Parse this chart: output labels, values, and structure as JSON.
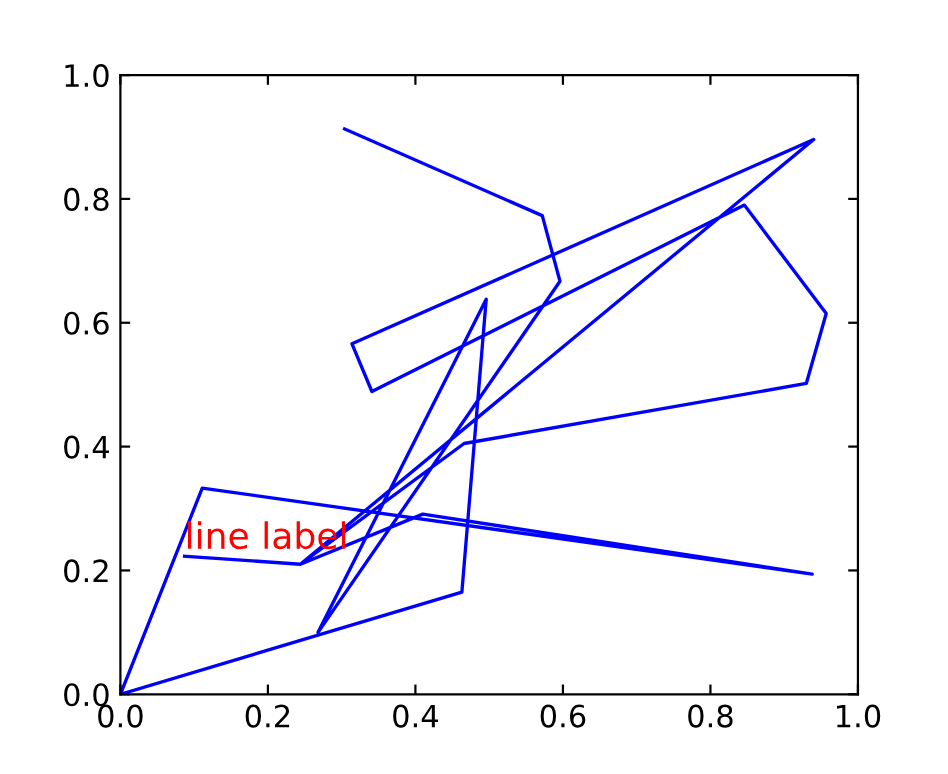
{
  "chart_data": {
    "type": "line",
    "x": [
      0.304,
      0.572,
      0.596,
      0.268,
      0.496,
      0.463,
      0.0,
      0.111,
      0.938,
      0.41,
      0.244,
      0.94,
      0.314,
      0.341,
      0.846,
      0.957,
      0.93,
      0.466,
      0.244,
      0.087
    ],
    "series": [
      {
        "color": "#0000ff",
        "values": [
          0.913,
          0.773,
          0.667,
          0.1,
          0.638,
          0.165,
          0.0,
          0.333,
          0.194,
          0.291,
          0.21,
          0.896,
          0.566,
          0.489,
          0.79,
          0.615,
          0.502,
          0.405,
          0.21,
          0.223
        ]
      }
    ],
    "xlim": [
      0.0,
      1.0
    ],
    "ylim": [
      0.0,
      1.0
    ],
    "xticks": [
      {
        "value": 0,
        "label": "0.0"
      },
      0.2,
      0.4,
      0.6,
      0.8,
      {
        "value": 1,
        "label": "1.0"
      }
    ],
    "yticks": [
      {
        "value": 0,
        "label": "0.0"
      },
      0.2,
      0.4,
      0.6,
      0.8,
      {
        "value": 1,
        "label": "1.0"
      }
    ],
    "annotations": [
      {
        "text": "line label",
        "x": 0.087,
        "y": 0.223
      }
    ],
    "grid": false
  }
}
